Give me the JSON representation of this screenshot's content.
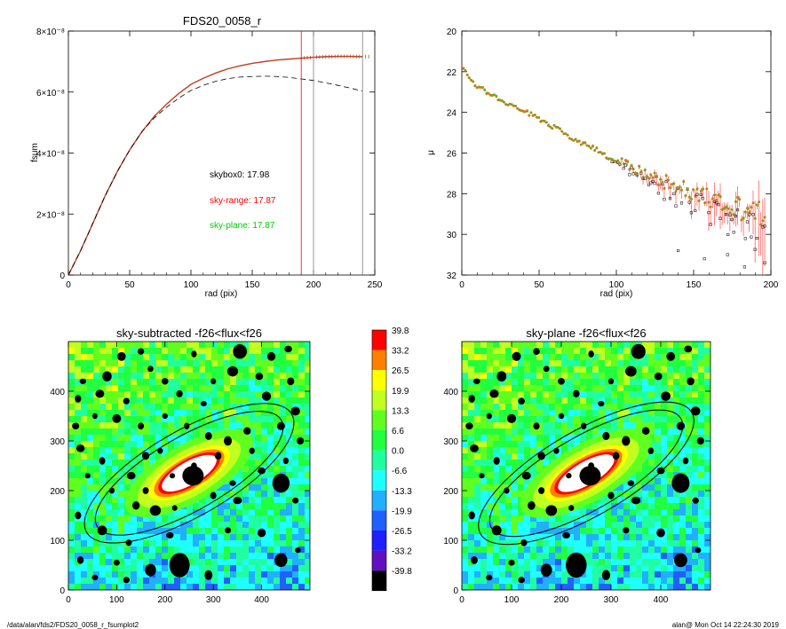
{
  "charts": {
    "fsum": {
      "title": "FDS20_0058_r",
      "xlabel": "rad (pix)",
      "ylabel": "fsum",
      "xticks": [
        "0",
        "50",
        "100",
        "150",
        "200",
        "250"
      ],
      "yticks": [
        "0",
        "2×10⁻⁸",
        "4×10⁻⁸",
        "6×10⁻⁸",
        "8×10⁻⁸"
      ],
      "annotations": [
        {
          "text": "skybox0: 17.98",
          "color": "#000000"
        },
        {
          "text": "sky-range: 17.87",
          "color": "#ff0000"
        },
        {
          "text": "sky-plane: 17.87",
          "color": "#00cc00"
        }
      ]
    },
    "mu": {
      "xlabel": "rad (pix)",
      "ylabel": "μ",
      "xticks": [
        "0",
        "50",
        "100",
        "150",
        "200"
      ],
      "yticks": [
        "20",
        "22",
        "24",
        "26",
        "28",
        "30",
        "32"
      ]
    },
    "map_left": {
      "title": "sky-subtracted -f26<flux<f26",
      "xticks": [
        "0",
        "100",
        "200",
        "300",
        "400"
      ],
      "yticks": [
        "0",
        "100",
        "200",
        "300",
        "400"
      ]
    },
    "map_right": {
      "title": "sky-plane -f26<flux<f26",
      "xticks": [
        "0",
        "100",
        "200",
        "300",
        "400"
      ],
      "yticks": [
        "0",
        "100",
        "200",
        "300",
        "400"
      ]
    },
    "colorbar": {
      "labels": [
        "39.8",
        "33.2",
        "26.5",
        "19.9",
        "13.3",
        "6.6",
        "0.0",
        "-6.6",
        "-13.3",
        "-19.9",
        "-26.5",
        "-33.2",
        "-39.8"
      ]
    }
  },
  "chart_data": [
    {
      "type": "line",
      "title": "FDS20_0058_r",
      "xlabel": "rad (pix)",
      "ylabel": "fsum",
      "xlim": [
        0,
        250
      ],
      "ylim": [
        0,
        8e-08
      ],
      "series": [
        {
          "x": [
            0,
            10,
            20,
            30,
            40,
            50,
            60,
            70,
            80,
            90,
            100,
            110,
            120,
            130,
            140,
            150,
            160,
            170,
            180,
            190,
            200,
            210,
            220,
            230,
            240
          ],
          "y": [
            0,
            8e-09,
            1.7e-08,
            2.6e-08,
            3.4e-08,
            4.1e-08,
            4.7e-08,
            5.2e-08,
            5.6e-08,
            5.95e-08,
            6.25e-08,
            6.45e-08,
            6.62e-08,
            6.76e-08,
            6.86e-08,
            6.94e-08,
            7e-08,
            7.05e-08,
            7.08e-08,
            7.11e-08,
            7.14e-08,
            7.16e-08,
            7.17e-08,
            7.17e-08,
            7.16e-08
          ],
          "color": "#c04020"
        },
        {
          "x": [
            0,
            10,
            20,
            30,
            40,
            50,
            60,
            70,
            80,
            90,
            100,
            110,
            120,
            130,
            140,
            150,
            160,
            170,
            180,
            190,
            200,
            210,
            220,
            230,
            240
          ],
          "y": [
            0,
            8e-09,
            1.7e-08,
            2.6e-08,
            3.4e-08,
            4.1e-08,
            4.7e-08,
            5.15e-08,
            5.5e-08,
            5.8e-08,
            6.05e-08,
            6.22e-08,
            6.35e-08,
            6.44e-08,
            6.49e-08,
            6.51e-08,
            6.52e-08,
            6.51e-08,
            6.48e-08,
            6.43e-08,
            6.38e-08,
            6.3e-08,
            6.22e-08,
            6.13e-08,
            6.03e-08
          ],
          "color": "#000000",
          "dash": true
        }
      ],
      "vlines": [
        {
          "x": 190,
          "color": "#ff0000"
        },
        {
          "x": 200,
          "color": "#808080"
        },
        {
          "x": 240,
          "color": "#808080"
        }
      ]
    },
    {
      "type": "scatter",
      "xlabel": "rad (pix)",
      "ylabel": "μ",
      "xlim": [
        0,
        200
      ],
      "ylim": [
        32,
        20
      ],
      "profile": {
        "x": [
          0,
          5,
          10,
          20,
          30,
          40,
          50,
          60,
          70,
          80,
          90,
          100,
          110,
          120,
          130,
          140,
          150,
          160,
          170,
          180,
          190,
          200
        ],
        "y": [
          21.8,
          22.3,
          22.7,
          23.2,
          23.6,
          23.95,
          24.3,
          24.75,
          25.2,
          25.6,
          25.95,
          26.35,
          26.7,
          27.05,
          27.4,
          27.7,
          28.0,
          28.3,
          28.55,
          28.75,
          28.9,
          29.0
        ]
      }
    },
    {
      "type": "heatmap",
      "title": "sky-subtracted -f26<flux<f26",
      "xlim": [
        0,
        500
      ],
      "ylim": [
        0,
        500
      ],
      "colorbar": {
        "min": -39.8,
        "max": 39.8
      }
    },
    {
      "type": "heatmap",
      "title": "sky-plane -f26<flux<f26",
      "xlim": [
        0,
        500
      ],
      "ylim": [
        0,
        500
      ],
      "colorbar": {
        "min": -39.8,
        "max": 39.8
      }
    }
  ],
  "footer": {
    "left": "/data/alan/fds2/FDS20_0058_r_fsumplot2",
    "right": "alan@  Mon Oct 14 22:24:30 2019"
  }
}
